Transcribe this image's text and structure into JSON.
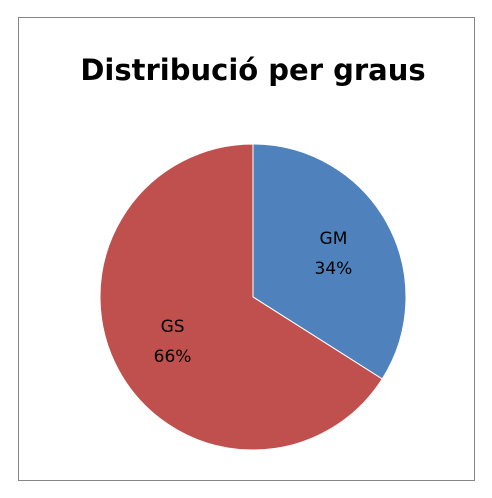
{
  "chart_data": {
    "type": "pie",
    "title": "Distribució per graus",
    "categories": [
      "GM",
      "GS"
    ],
    "values": [
      34,
      66
    ],
    "value_labels": [
      "34%",
      "66%"
    ],
    "colors": [
      "#4f81bd",
      "#c0504d"
    ]
  }
}
